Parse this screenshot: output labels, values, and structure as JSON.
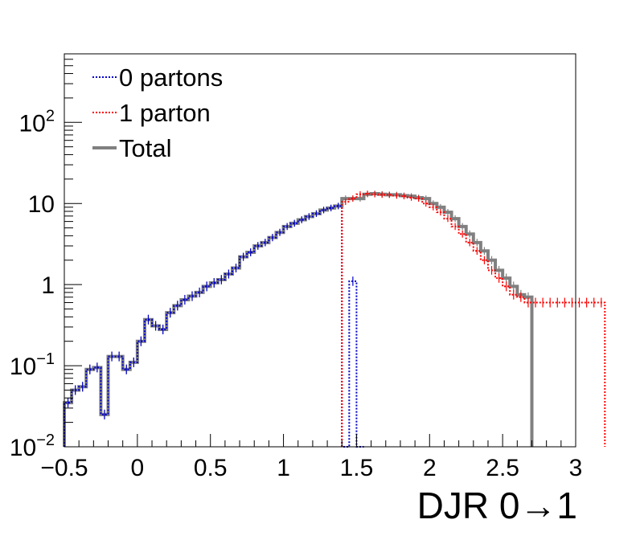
{
  "chart_data": {
    "type": "line",
    "subtype": "step-histogram",
    "title": "",
    "xlabel": "DJR 0→1",
    "ylabel": "",
    "xlim": [
      -0.5,
      3.0
    ],
    "ylim": [
      0.01,
      700
    ],
    "y_scale": "log",
    "grid": false,
    "legend_position": "top-left",
    "x_ticks": [
      {
        "value": -0.5,
        "label": "−0.5"
      },
      {
        "value": 0,
        "label": "0"
      },
      {
        "value": 0.5,
        "label": "0.5"
      },
      {
        "value": 1,
        "label": "1"
      },
      {
        "value": 1.5,
        "label": "1.5"
      },
      {
        "value": 2,
        "label": "2"
      },
      {
        "value": 2.5,
        "label": "2.5"
      },
      {
        "value": 3,
        "label": "3"
      }
    ],
    "y_ticks": [
      {
        "value": 0.01,
        "base": "10",
        "exp": "−2",
        "label": "10^-2"
      },
      {
        "value": 0.1,
        "base": "10",
        "exp": "−1",
        "label": "10^-1"
      },
      {
        "value": 1,
        "base": "1",
        "exp": "",
        "label": "1"
      },
      {
        "value": 10,
        "base": "10",
        "exp": "",
        "label": "10"
      },
      {
        "value": 100,
        "base": "10",
        "exp": "2",
        "label": "10^2"
      }
    ],
    "bin_width": 0.05,
    "series": [
      {
        "name": "0 partons",
        "color": "#0000cc",
        "style": "dotted",
        "x_start": -0.5,
        "values": [
          0.035,
          0.05,
          0.055,
          0.09,
          0.095,
          0.025,
          0.13,
          0.13,
          0.09,
          0.11,
          0.2,
          0.37,
          0.31,
          0.28,
          0.45,
          0.55,
          0.65,
          0.72,
          0.8,
          0.95,
          1.05,
          1.15,
          1.35,
          1.6,
          2.2,
          2.5,
          3.0,
          3.3,
          3.8,
          4.4,
          5.2,
          5.7,
          6.3,
          6.9,
          7.5,
          8.3,
          8.8,
          9.3,
          0.0,
          1.1,
          0.0
        ]
      },
      {
        "name": "1 parton",
        "color": "#ff0000",
        "style": "dotted",
        "x_start": 1.4,
        "values": [
          10.5,
          11.5,
          13.0,
          13.2,
          13.0,
          12.8,
          12.8,
          12.5,
          12.3,
          11.8,
          11.5,
          10.0,
          9.0,
          7.8,
          6.5,
          5.2,
          4.2,
          3.3,
          2.6,
          2.0,
          1.5,
          1.2,
          0.95,
          0.75,
          0.7,
          0.6,
          0.6,
          0.6,
          0.6,
          0.6,
          0.6,
          0.6,
          0.6,
          0.6,
          0.6,
          0.6
        ]
      },
      {
        "name": "Total",
        "color": "#808080",
        "style": "solid",
        "x_start": -0.5,
        "values": [
          0.035,
          0.05,
          0.055,
          0.09,
          0.095,
          0.025,
          0.13,
          0.13,
          0.09,
          0.11,
          0.2,
          0.37,
          0.31,
          0.28,
          0.45,
          0.55,
          0.65,
          0.72,
          0.8,
          0.95,
          1.05,
          1.15,
          1.35,
          1.6,
          2.2,
          2.5,
          3.0,
          3.3,
          3.8,
          4.4,
          5.2,
          5.7,
          6.3,
          6.9,
          7.5,
          8.3,
          8.8,
          9.3,
          11.5,
          11.5,
          11.5,
          13.0,
          13.2,
          13.0,
          12.8,
          12.8,
          12.5,
          12.3,
          11.8,
          11.5,
          10.0,
          9.0,
          7.8,
          6.5,
          5.2,
          4.2,
          3.3,
          2.6,
          2.0,
          1.5,
          1.2,
          0.95,
          0.75,
          0.7
        ]
      }
    ]
  }
}
